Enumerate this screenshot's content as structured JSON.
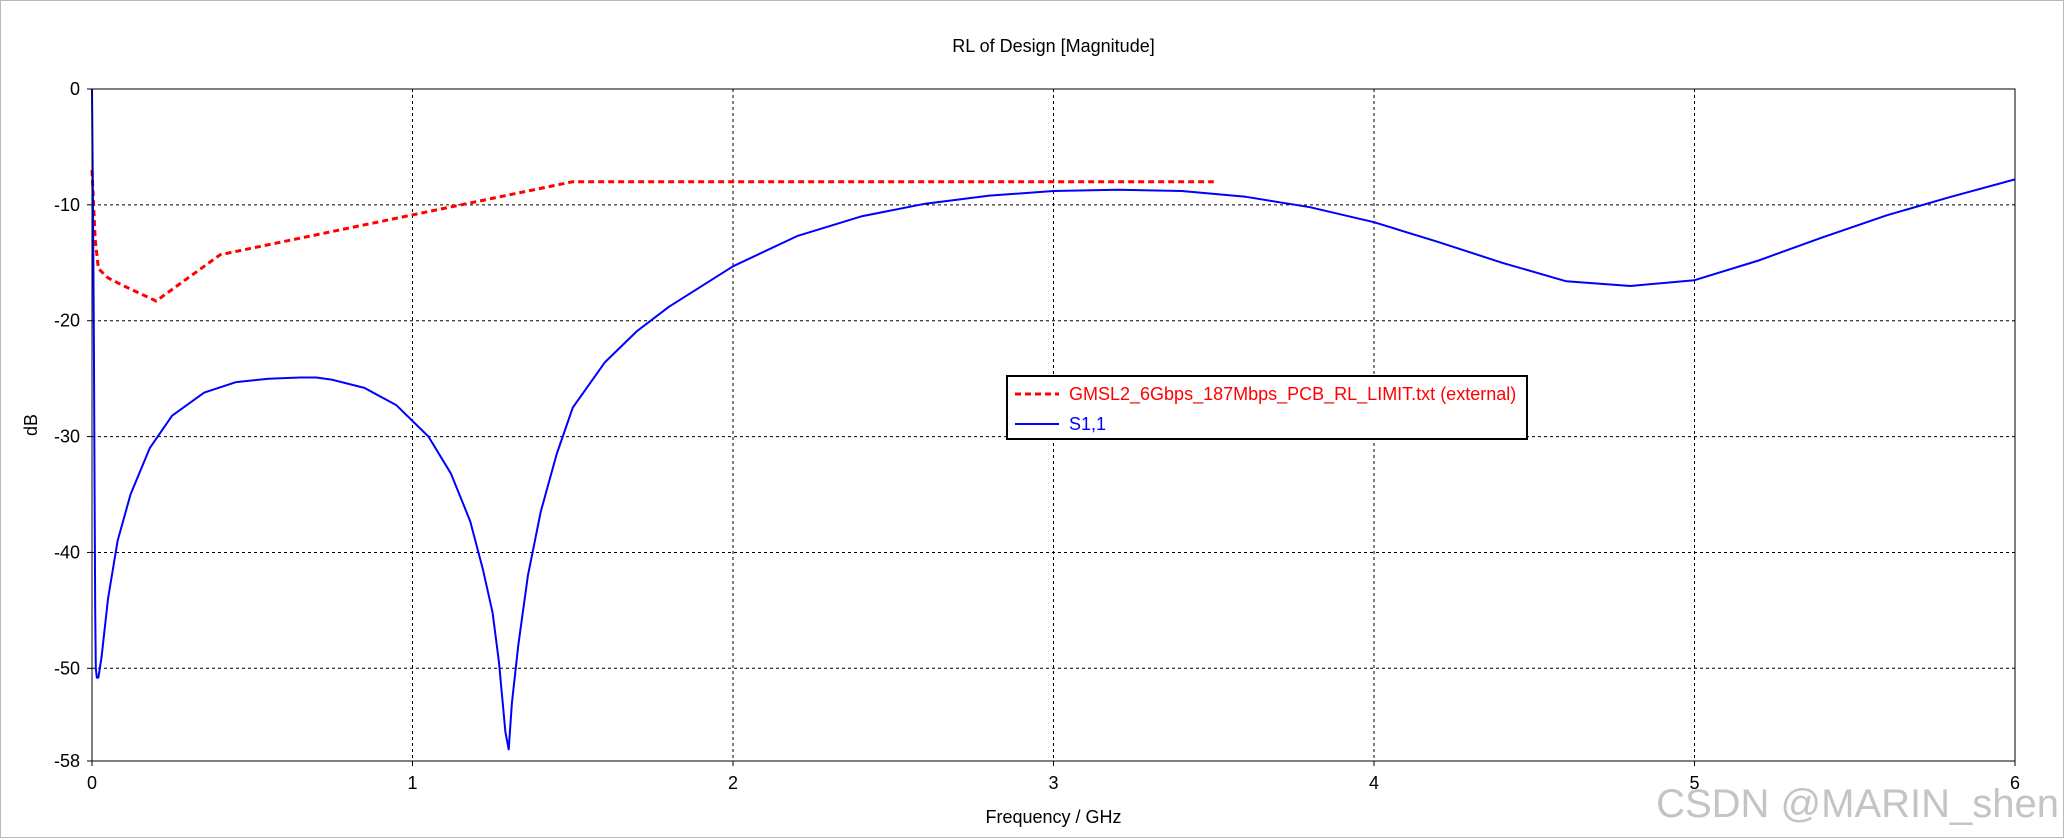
{
  "chart_data": {
    "type": "line",
    "title": "RL of Design [Magnitude]",
    "xlabel": "Frequency / GHz",
    "ylabel": "dB",
    "xlim": [
      0,
      6
    ],
    "ylim": [
      -58,
      0
    ],
    "xticks": [
      0,
      1,
      2,
      3,
      4,
      5,
      6
    ],
    "yticks": [
      0,
      -10,
      -20,
      -30,
      -40,
      -50,
      -58
    ],
    "grid": true,
    "legend_position": "center-right",
    "series": [
      {
        "name": "GMSL2_6Gbps_187Mbps_PCB_RL_LIMIT.txt (external)",
        "color": "#ff0000",
        "style": "dashed",
        "x": [
          0.0,
          0.005,
          0.01,
          0.02,
          0.05,
          0.1,
          0.2,
          0.4,
          1.5,
          3.5
        ],
        "y": [
          -7,
          -10,
          -13,
          -15.5,
          -16.3,
          -17,
          -18.3,
          -14.3,
          -8,
          -8
        ]
      },
      {
        "name": "S1,1",
        "color": "#0000ff",
        "style": "solid",
        "x": [
          0.0,
          0.003,
          0.006,
          0.008,
          0.01,
          0.012,
          0.015,
          0.02,
          0.03,
          0.05,
          0.08,
          0.12,
          0.18,
          0.25,
          0.35,
          0.45,
          0.55,
          0.65,
          0.7,
          0.75,
          0.85,
          0.95,
          1.05,
          1.12,
          1.18,
          1.22,
          1.25,
          1.27,
          1.28,
          1.29,
          1.3,
          1.31,
          1.33,
          1.36,
          1.4,
          1.45,
          1.5,
          1.6,
          1.7,
          1.8,
          2.0,
          2.2,
          2.4,
          2.6,
          2.8,
          3.0,
          3.2,
          3.4,
          3.6,
          3.8,
          4.0,
          4.2,
          4.4,
          4.6,
          4.8,
          5.0,
          5.2,
          5.4,
          5.6,
          5.8,
          6.0
        ],
        "y": [
          0,
          -10,
          -22,
          -35,
          -45,
          -50,
          -50.8,
          -50.8,
          -49,
          -44,
          -39,
          -35,
          -31,
          -28.2,
          -26.2,
          -25.3,
          -25,
          -24.9,
          -24.9,
          -25.1,
          -25.8,
          -27.3,
          -30,
          -33.2,
          -37.3,
          -41.5,
          -45.2,
          -49.5,
          -52.5,
          -55.5,
          -57,
          -53,
          -48,
          -42,
          -36.5,
          -31.5,
          -27.5,
          -23.6,
          -20.9,
          -18.8,
          -15.3,
          -12.7,
          -11,
          -9.9,
          -9.2,
          -8.8,
          -8.7,
          -8.8,
          -9.3,
          -10.2,
          -11.5,
          -13.2,
          -15,
          -16.6,
          -17,
          -16.5,
          -14.8,
          -12.8,
          -10.9,
          -9.3,
          -7.8
        ]
      }
    ]
  },
  "watermark": "CSDN @MARIN_shen"
}
